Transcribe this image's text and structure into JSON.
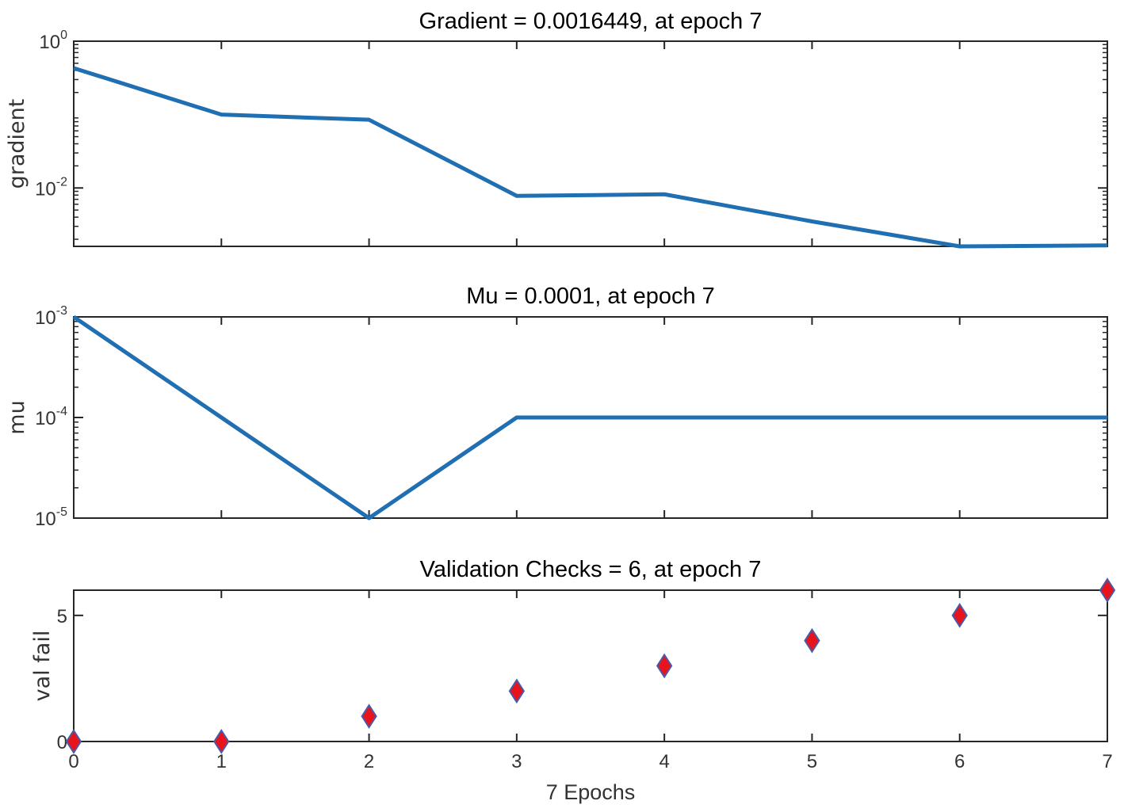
{
  "chart_data": [
    {
      "type": "line",
      "title": "Gradient = 0.0016449, at epoch 7",
      "ylabel": "gradient",
      "yscale": "log",
      "ylim": [
        0.0016,
        1
      ],
      "yticks": [
        {
          "value": 1,
          "base": "10",
          "exp": "0"
        },
        {
          "value": 0.01,
          "base": "10",
          "exp": "-2"
        }
      ],
      "x": [
        0,
        1,
        2,
        3,
        4,
        5,
        6,
        7
      ],
      "series": [
        {
          "values": [
            0.43,
            0.1,
            0.085,
            0.0078,
            0.0082,
            0.0035,
            0.0016,
            0.00165
          ],
          "color": "#1f6fb2"
        }
      ]
    },
    {
      "type": "line",
      "title": "Mu = 0.0001, at epoch 7",
      "ylabel": "mu",
      "yscale": "log",
      "ylim": [
        1e-05,
        0.001
      ],
      "yticks": [
        {
          "value": 0.001,
          "base": "10",
          "exp": "-3"
        },
        {
          "value": 0.0001,
          "base": "10",
          "exp": "-4"
        },
        {
          "value": 1e-05,
          "base": "10",
          "exp": "-5"
        }
      ],
      "x": [
        0,
        1,
        2,
        3,
        4,
        5,
        6,
        7
      ],
      "series": [
        {
          "values": [
            0.001,
            0.0001,
            1e-05,
            0.0001,
            0.0001,
            0.0001,
            0.0001,
            0.0001
          ],
          "color": "#1f6fb2"
        }
      ]
    },
    {
      "type": "scatter",
      "title": "Validation Checks = 6, at epoch 7",
      "ylabel": "val fail",
      "yscale": "linear",
      "ylim": [
        0,
        6
      ],
      "yticks": [
        {
          "value": 0,
          "label": "0"
        },
        {
          "value": 5,
          "label": "5"
        }
      ],
      "x": [
        0,
        1,
        2,
        3,
        4,
        5,
        6,
        7
      ],
      "xticklabels": [
        "0",
        "1",
        "2",
        "3",
        "4",
        "5",
        "6",
        "7"
      ],
      "xlabel": "7 Epochs",
      "series": [
        {
          "values": [
            0,
            0,
            1,
            2,
            3,
            4,
            5,
            6
          ],
          "marker": "diamond",
          "color": "#e8141b",
          "edgecolor": "#4a5aa8"
        }
      ]
    }
  ]
}
